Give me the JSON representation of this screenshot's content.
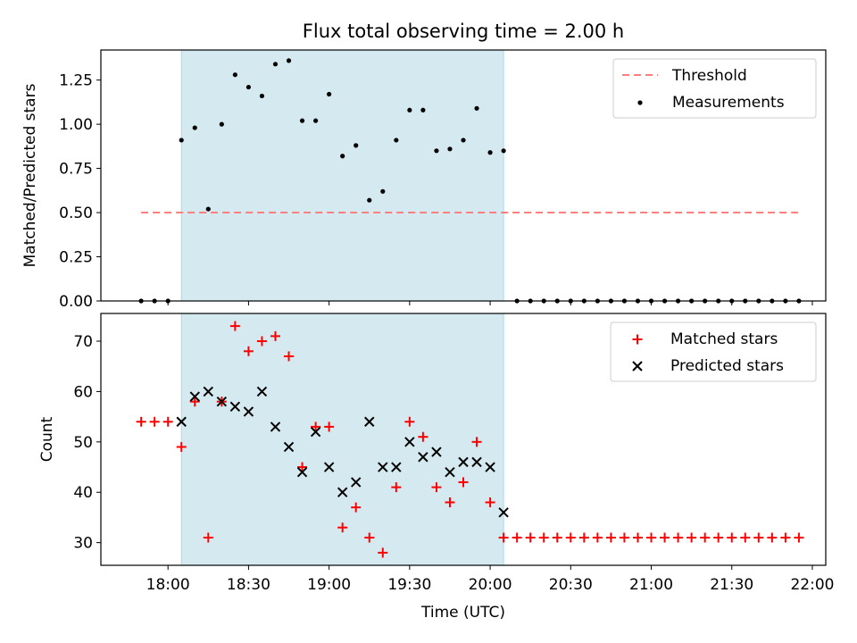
{
  "title": "Flux total observing time = 2.00 h",
  "chart_data": [
    {
      "type": "scatter",
      "panel": "top",
      "ylabel": "Matched/Predicted stars",
      "ylim": [
        0,
        1.42
      ],
      "yticks": [
        0.0,
        0.25,
        0.5,
        0.75,
        1.0,
        1.25
      ],
      "ytick_labels": [
        "0.00",
        "0.25",
        "0.50",
        "0.75",
        "1.00",
        "1.25"
      ],
      "shaded_interval": [
        "18:05",
        "20:05"
      ],
      "shade_color": "#d4eaf0",
      "legend": {
        "position": "upper right",
        "entries": [
          {
            "label": "Threshold",
            "style": "dashed-line",
            "color": "#ff7f7f"
          },
          {
            "label": "Measurements",
            "style": "dot",
            "color": "#000000"
          }
        ]
      },
      "threshold": {
        "y": 0.5,
        "x_range": [
          "17:50",
          "21:55"
        ],
        "color": "#ff7f7f"
      },
      "measurements": {
        "x": [
          "17:50",
          "17:55",
          "18:00",
          "18:05",
          "18:10",
          "18:15",
          "18:20",
          "18:25",
          "18:30",
          "18:35",
          "18:40",
          "18:45",
          "18:50",
          "18:55",
          "19:00",
          "19:05",
          "19:10",
          "19:15",
          "19:20",
          "19:25",
          "19:30",
          "19:35",
          "19:40",
          "19:45",
          "19:50",
          "19:55",
          "20:00",
          "20:05",
          "20:10",
          "20:15",
          "20:20",
          "20:25",
          "20:30",
          "20:35",
          "20:40",
          "20:45",
          "20:50",
          "20:55",
          "21:00",
          "21:05",
          "21:10",
          "21:15",
          "21:20",
          "21:25",
          "21:30",
          "21:35",
          "21:40",
          "21:45",
          "21:50",
          "21:55"
        ],
        "y": [
          0,
          0,
          0,
          0.91,
          0.98,
          0.52,
          1.0,
          1.28,
          1.21,
          1.16,
          1.34,
          1.36,
          1.02,
          1.02,
          1.17,
          0.82,
          0.88,
          0.57,
          0.62,
          0.91,
          1.08,
          1.08,
          0.85,
          0.86,
          0.91,
          1.09,
          0.84,
          0.85,
          0,
          0,
          0,
          0,
          0,
          0,
          0,
          0,
          0,
          0,
          0,
          0,
          0,
          0,
          0,
          0,
          0,
          0,
          0,
          0,
          0,
          0
        ]
      }
    },
    {
      "type": "scatter",
      "panel": "bottom",
      "xlabel": "Time (UTC)",
      "ylabel": "Count",
      "ylim": [
        25.5,
        75.5
      ],
      "yticks": [
        30,
        40,
        50,
        60,
        70
      ],
      "ytick_labels": [
        "30",
        "40",
        "50",
        "60",
        "70"
      ],
      "xlim": [
        "17:35",
        "22:05"
      ],
      "xticks": [
        "18:00",
        "18:30",
        "19:00",
        "19:30",
        "20:00",
        "20:30",
        "21:00",
        "21:30",
        "22:00"
      ],
      "shaded_interval": [
        "18:05",
        "20:05"
      ],
      "shade_color": "#d4eaf0",
      "legend": {
        "position": "upper right",
        "entries": [
          {
            "label": "Matched stars",
            "style": "plus",
            "color": "#ff0000"
          },
          {
            "label": "Predicted stars",
            "style": "x",
            "color": "#000000"
          }
        ]
      },
      "series": [
        {
          "name": "Matched stars",
          "marker": "plus",
          "color": "#ff0000",
          "x": [
            "17:50",
            "17:55",
            "18:00",
            "18:05",
            "18:10",
            "18:15",
            "18:20",
            "18:25",
            "18:30",
            "18:35",
            "18:40",
            "18:45",
            "18:50",
            "18:55",
            "19:00",
            "19:05",
            "19:10",
            "19:15",
            "19:20",
            "19:25",
            "19:30",
            "19:35",
            "19:40",
            "19:45",
            "19:50",
            "19:55",
            "20:00",
            "20:05",
            "20:10",
            "20:15",
            "20:20",
            "20:25",
            "20:30",
            "20:35",
            "20:40",
            "20:45",
            "20:50",
            "20:55",
            "21:00",
            "21:05",
            "21:10",
            "21:15",
            "21:20",
            "21:25",
            "21:30",
            "21:35",
            "21:40",
            "21:45",
            "21:50",
            "21:55"
          ],
          "y": [
            54,
            54,
            54,
            49,
            58,
            31,
            58,
            73,
            68,
            70,
            71,
            67,
            45,
            53,
            53,
            33,
            37,
            31,
            28,
            41,
            54,
            51,
            41,
            38,
            42,
            50,
            38,
            31,
            31,
            31,
            31,
            31,
            31,
            31,
            31,
            31,
            31,
            31,
            31,
            31,
            31,
            31,
            31,
            31,
            31,
            31,
            31,
            31,
            31,
            31
          ]
        },
        {
          "name": "Predicted stars",
          "marker": "x",
          "color": "#000000",
          "x": [
            "18:05",
            "18:10",
            "18:15",
            "18:20",
            "18:25",
            "18:30",
            "18:35",
            "18:40",
            "18:45",
            "18:50",
            "18:55",
            "19:00",
            "19:05",
            "19:10",
            "19:15",
            "19:20",
            "19:25",
            "19:30",
            "19:35",
            "19:40",
            "19:45",
            "19:50",
            "19:55",
            "20:00",
            "20:05"
          ],
          "y": [
            54,
            59,
            60,
            58,
            57,
            56,
            60,
            53,
            49,
            44,
            52,
            45,
            40,
            42,
            54,
            45,
            45,
            50,
            47,
            48,
            44,
            46,
            46,
            45,
            36
          ]
        }
      ]
    }
  ]
}
